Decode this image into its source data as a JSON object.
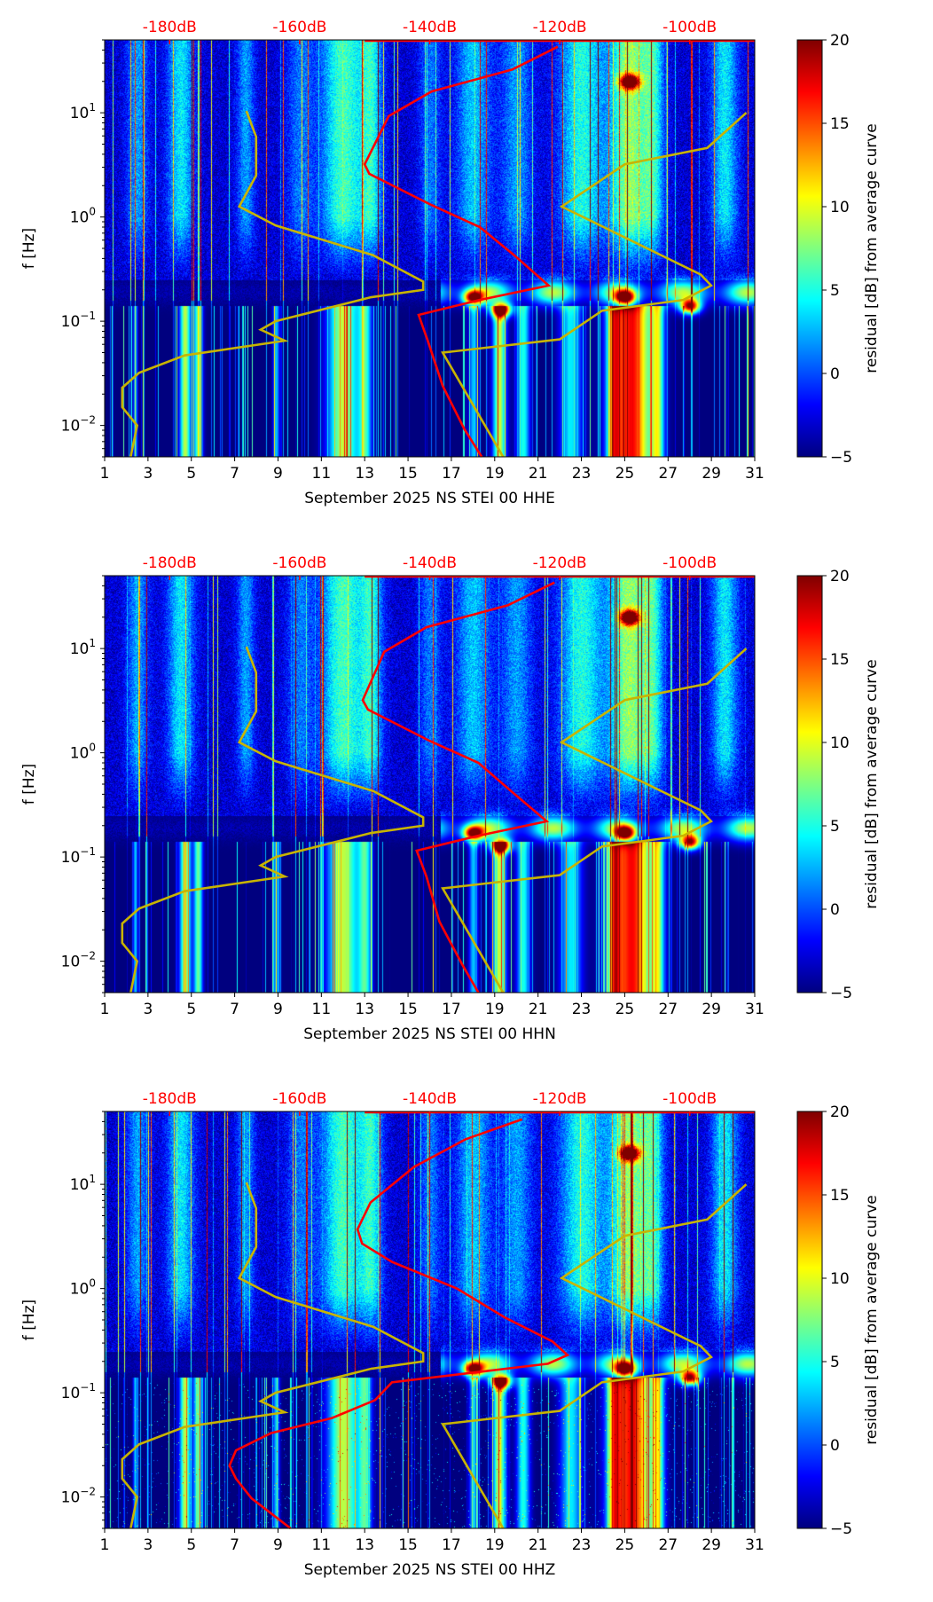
{
  "chart_data": {
    "type": "heatmap",
    "colorbar": {
      "label": "residual [dB] from average curve",
      "ticks": [
        20,
        15,
        10,
        5,
        0,
        -5
      ],
      "range": [
        -5,
        20
      ],
      "colormap": "jet"
    },
    "ylabel": "f [Hz]",
    "ylim": [
      0.005,
      50
    ],
    "yscale": "log",
    "yticks": [
      {
        "v": 0.01,
        "b": "10",
        "e": "−2"
      },
      {
        "v": 0.1,
        "b": "10",
        "e": "−1"
      },
      {
        "v": 1,
        "b": "10",
        "e": "0"
      },
      {
        "v": 10,
        "b": "10",
        "e": "1"
      }
    ],
    "xlim": [
      1,
      31
    ],
    "xticks": [
      "1",
      "3",
      "5",
      "7",
      "9",
      "11",
      "13",
      "15",
      "17",
      "19",
      "21",
      "23",
      "25",
      "27",
      "29",
      "31"
    ],
    "top_axis": {
      "ticks": [
        {
          "db": -180,
          "label": "-180dB"
        },
        {
          "db": -160,
          "label": "-160dB"
        },
        {
          "db": -140,
          "label": "-140dB"
        },
        {
          "db": -120,
          "label": "-120dB"
        },
        {
          "db": -100,
          "label": "-100dB"
        }
      ],
      "color": "#ff0000"
    },
    "model_curves": {
      "color": "#c8b400",
      "low": [
        [
          -168.2,
          10.4
        ],
        [
          -166.7,
          5.9
        ],
        [
          -166.7,
          2.5
        ],
        [
          -169.3,
          1.26
        ],
        [
          -163.7,
          0.83
        ],
        [
          -148.7,
          0.43
        ],
        [
          -141,
          0.24
        ],
        [
          -141,
          0.2
        ],
        [
          -149,
          0.17
        ],
        [
          -163.7,
          0.1
        ],
        [
          -166,
          0.083
        ],
        [
          -162.3,
          0.065
        ],
        [
          -177.7,
          0.047
        ],
        [
          -184.7,
          0.032
        ],
        [
          -187.3,
          0.023
        ],
        [
          -187.3,
          0.015
        ],
        [
          -185,
          0.01
        ],
        [
          -186,
          0.005
        ]
      ],
      "high": [
        [
          -91.3,
          10
        ],
        [
          -97.3,
          4.6
        ],
        [
          -110,
          3.2
        ],
        [
          -119.7,
          1.26
        ],
        [
          -98.3,
          0.28
        ],
        [
          -96.7,
          0.22
        ],
        [
          -101,
          0.16
        ],
        [
          -113.5,
          0.126
        ],
        [
          -120,
          0.067
        ],
        [
          -138,
          0.05
        ],
        [
          -128.7,
          0.005
        ]
      ]
    },
    "panels": [
      {
        "title": "September 2025 NS STEI 00 HHE",
        "psd": [
          [
            -120.3,
            43
          ],
          [
            -127.3,
            26
          ],
          [
            -139.7,
            16
          ],
          [
            -146.3,
            9.3
          ],
          [
            -150,
            3.2
          ],
          [
            -149.3,
            2.6
          ],
          [
            -139.7,
            1.3
          ],
          [
            -132.3,
            0.8
          ],
          [
            -127,
            0.43
          ],
          [
            -121.7,
            0.22
          ],
          [
            -132.3,
            0.16
          ],
          [
            -141.7,
            0.115
          ],
          [
            -140.3,
            0.065
          ],
          [
            -138,
            0.024
          ],
          [
            -134.7,
            0.0093
          ],
          [
            -132,
            0.005
          ]
        ]
      },
      {
        "title": "September 2025 NS STEI 00 HHN",
        "psd": [
          [
            -120.8,
            43
          ],
          [
            -128,
            26
          ],
          [
            -140.5,
            16
          ],
          [
            -147,
            9.3
          ],
          [
            -150.3,
            3.2
          ],
          [
            -149.5,
            2.6
          ],
          [
            -140,
            1.3
          ],
          [
            -132.5,
            0.8
          ],
          [
            -127.5,
            0.43
          ],
          [
            -122,
            0.22
          ],
          [
            -132.5,
            0.16
          ],
          [
            -142,
            0.115
          ],
          [
            -140.5,
            0.065
          ],
          [
            -138.5,
            0.024
          ],
          [
            -135,
            0.0093
          ],
          [
            -132.5,
            0.005
          ]
        ]
      },
      {
        "title": "September 2025 NS STEI 00 HHZ",
        "psd": [
          [
            -125.8,
            42
          ],
          [
            -134.5,
            27
          ],
          [
            -142.4,
            14.7
          ],
          [
            -149.1,
            6.7
          ],
          [
            -151.1,
            3.7
          ],
          [
            -150.4,
            2.7
          ],
          [
            -145.8,
            1.8
          ],
          [
            -135.8,
            1.0
          ],
          [
            -128.5,
            0.53
          ],
          [
            -121.1,
            0.31
          ],
          [
            -118.8,
            0.23
          ],
          [
            -121.8,
            0.19
          ],
          [
            -145.8,
            0.126
          ],
          [
            -148.4,
            0.085
          ],
          [
            -155.1,
            0.057
          ],
          [
            -164.4,
            0.041
          ],
          [
            -169.8,
            0.028
          ],
          [
            -170.8,
            0.02
          ],
          [
            -169.8,
            0.015
          ],
          [
            -167.4,
            0.0097
          ],
          [
            -161.4,
            0.005
          ]
        ]
      }
    ],
    "hotspots_day_hz": [
      [
        18,
        0.17
      ],
      [
        19.3,
        0.13
      ],
      [
        25,
        0.17
      ],
      [
        28,
        0.14
      ],
      [
        25.2,
        20
      ]
    ]
  }
}
